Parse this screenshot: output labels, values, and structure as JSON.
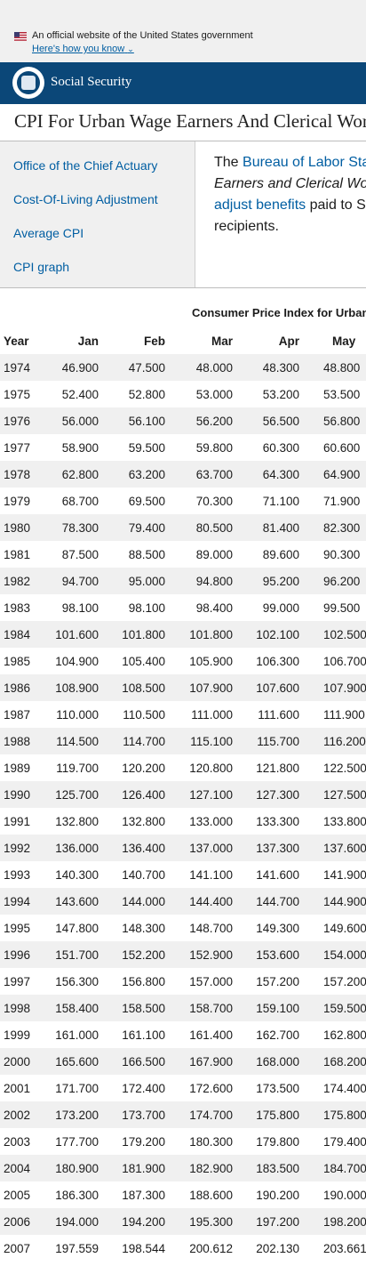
{
  "gov_banner": {
    "official_text": "An official website of the United States government",
    "how_you_know": "Here's how you know"
  },
  "header": {
    "site_name": "Social Security"
  },
  "page_title": "CPI For Urban Wage Earners And Clerical Workers",
  "sidebar": {
    "items": [
      {
        "label": "Office of the Chief Actuary"
      },
      {
        "label": "Cost-Of-Living Adjustment"
      },
      {
        "label": "Average CPI"
      },
      {
        "label": "CPI graph"
      }
    ]
  },
  "intro": {
    "p1": "The ",
    "link1": "Bureau of Labor Statistics",
    "p2": "Earners and Clerical Workers",
    "link2": "adjust benefits",
    "p3": " paid to Social Security",
    "p4": "recipients."
  },
  "table": {
    "title": "Consumer Price Index for Urban Wage Earners",
    "headers": [
      "Year",
      "Jan",
      "Feb",
      "Mar",
      "Apr",
      "May"
    ],
    "rows": [
      [
        "1974",
        "46.900",
        "47.500",
        "48.000",
        "48.300",
        "48.800"
      ],
      [
        "1975",
        "52.400",
        "52.800",
        "53.000",
        "53.200",
        "53.500"
      ],
      [
        "1976",
        "56.000",
        "56.100",
        "56.200",
        "56.500",
        "56.800"
      ],
      [
        "1977",
        "58.900",
        "59.500",
        "59.800",
        "60.300",
        "60.600"
      ],
      [
        "1978",
        "62.800",
        "63.200",
        "63.700",
        "64.300",
        "64.900"
      ],
      [
        "1979",
        "68.700",
        "69.500",
        "70.300",
        "71.100",
        "71.900"
      ],
      [
        "1980",
        "78.300",
        "79.400",
        "80.500",
        "81.400",
        "82.300"
      ],
      [
        "1981",
        "87.500",
        "88.500",
        "89.000",
        "89.600",
        "90.300"
      ],
      [
        "1982",
        "94.700",
        "95.000",
        "94.800",
        "95.200",
        "96.200"
      ],
      [
        "1983",
        "98.100",
        "98.100",
        "98.400",
        "99.000",
        "99.500"
      ],
      [
        "1984",
        "101.600",
        "101.800",
        "101.800",
        "102.100",
        "102.500"
      ],
      [
        "1985",
        "104.900",
        "105.400",
        "105.900",
        "106.300",
        "106.700"
      ],
      [
        "1986",
        "108.900",
        "108.500",
        "107.900",
        "107.600",
        "107.900"
      ],
      [
        "1987",
        "110.000",
        "110.500",
        "111.000",
        "111.600",
        "111.900"
      ],
      [
        "1988",
        "114.500",
        "114.700",
        "115.100",
        "115.700",
        "116.200"
      ],
      [
        "1989",
        "119.700",
        "120.200",
        "120.800",
        "121.800",
        "122.500"
      ],
      [
        "1990",
        "125.700",
        "126.400",
        "127.100",
        "127.300",
        "127.500"
      ],
      [
        "1991",
        "132.800",
        "132.800",
        "133.000",
        "133.300",
        "133.800"
      ],
      [
        "1992",
        "136.000",
        "136.400",
        "137.000",
        "137.300",
        "137.600"
      ],
      [
        "1993",
        "140.300",
        "140.700",
        "141.100",
        "141.600",
        "141.900"
      ],
      [
        "1994",
        "143.600",
        "144.000",
        "144.400",
        "144.700",
        "144.900"
      ],
      [
        "1995",
        "147.800",
        "148.300",
        "148.700",
        "149.300",
        "149.600"
      ],
      [
        "1996",
        "151.700",
        "152.200",
        "152.900",
        "153.600",
        "154.000"
      ],
      [
        "1997",
        "156.300",
        "156.800",
        "157.000",
        "157.200",
        "157.200"
      ],
      [
        "1998",
        "158.400",
        "158.500",
        "158.700",
        "159.100",
        "159.500"
      ],
      [
        "1999",
        "161.000",
        "161.100",
        "161.400",
        "162.700",
        "162.800"
      ],
      [
        "2000",
        "165.600",
        "166.500",
        "167.900",
        "168.000",
        "168.200"
      ],
      [
        "2001",
        "171.700",
        "172.400",
        "172.600",
        "173.500",
        "174.400"
      ],
      [
        "2002",
        "173.200",
        "173.700",
        "174.700",
        "175.800",
        "175.800"
      ],
      [
        "2003",
        "177.700",
        "179.200",
        "180.300",
        "179.800",
        "179.400"
      ],
      [
        "2004",
        "180.900",
        "181.900",
        "182.900",
        "183.500",
        "184.700"
      ],
      [
        "2005",
        "186.300",
        "187.300",
        "188.600",
        "190.200",
        "190.000"
      ],
      [
        "2006",
        "194.000",
        "194.200",
        "195.300",
        "197.200",
        "198.200"
      ],
      [
        "2007",
        "197.559",
        "198.544",
        "200.612",
        "202.130",
        "203.661"
      ]
    ]
  }
}
